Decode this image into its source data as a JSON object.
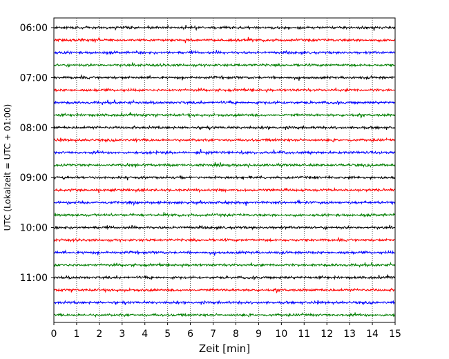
{
  "chart_data": {
    "type": "line",
    "description_type": "helicorder",
    "xlabel": "Zeit  [min]",
    "ylabel": "UTC (Lokalzeit = UTC + 01:00)",
    "xlim": [
      0,
      15
    ],
    "x_ticks": [
      0,
      1,
      2,
      3,
      4,
      5,
      6,
      7,
      8,
      9,
      10,
      11,
      12,
      13,
      14,
      15
    ],
    "x_tick_labels": [
      "0",
      "1",
      "2",
      "3",
      "4",
      "5",
      "6",
      "7",
      "8",
      "9",
      "10",
      "11",
      "12",
      "13",
      "14",
      "15"
    ],
    "y_tick_labels": [
      "06:00",
      "07:00",
      "08:00",
      "09:00",
      "10:00",
      "11:00"
    ],
    "trace_start_times": [
      "06:00",
      "06:15",
      "06:30",
      "06:45",
      "07:00",
      "07:15",
      "07:30",
      "07:45",
      "08:00",
      "08:15",
      "08:30",
      "08:45",
      "09:00",
      "09:15",
      "09:30",
      "09:45",
      "10:00",
      "10:15",
      "10:30",
      "10:45",
      "11:00",
      "11:15",
      "11:30",
      "11:45"
    ],
    "trace_colors": [
      "#000000",
      "#ff0000",
      "#0000ff",
      "#007f00"
    ],
    "vertical_grid": true,
    "grid_style": "dotted"
  }
}
